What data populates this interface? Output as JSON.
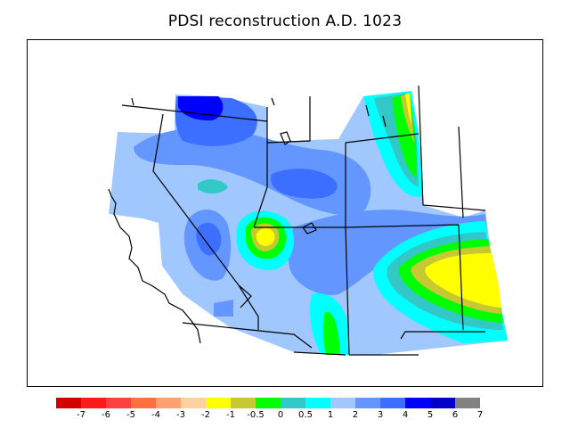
{
  "title": "PDSI reconstruction A.D. 1023",
  "colorbar": {
    "colors": [
      "#d40000",
      "#ff1a1a",
      "#ff4040",
      "#ff7040",
      "#ffa070",
      "#ffd0a0",
      "#ffff00",
      "#c8c832",
      "#00ff00",
      "#32c8c8",
      "#00ffff",
      "#a0c8ff",
      "#6496ff",
      "#3c6eff",
      "#0000ff",
      "#0000c8",
      "#828282"
    ],
    "ticks": [
      "-7",
      "-6",
      "-5",
      "-4",
      "-3",
      "-2",
      "-1",
      "-0.5",
      "0",
      "0.5",
      "1",
      "2",
      "3",
      "4",
      "5",
      "6",
      "7"
    ]
  },
  "legend_colors": {
    "background_field": "#a0c8ff",
    "moderate_wet": "#6496ff",
    "wet": "#3c6eff",
    "very_wet": "#0000ff",
    "near_normal": "#00ffff",
    "neutral_teal": "#32c8c8",
    "neutral": "#00ff00",
    "slight_dry": "#c8c832",
    "dry": "#ffff00"
  }
}
